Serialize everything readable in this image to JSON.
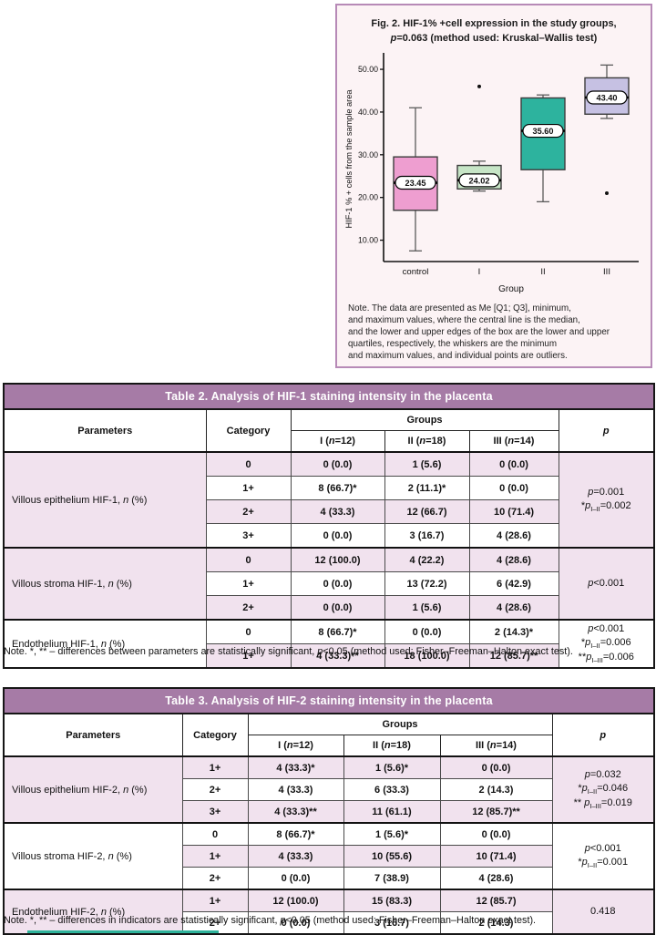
{
  "figure": {
    "title_lines": [
      [
        {
          "t": "Fig. 2. HIF-1% +cell expression in the study groups,"
        }
      ],
      [
        {
          "t": "p",
          "i": true
        },
        {
          "t": "=0.063 (method used: Kruskal–Wallis test)"
        }
      ]
    ],
    "note_lines": [
      "Note. The data are presented as Me [Q1; Q3], minimum,",
      "and maximum values, where the central line is the median,",
      "and the lower and upper edges of the box are the lower and upper",
      "quartiles, respectively, the whiskers are the minimum",
      "and maximum values, and individual points are outliers."
    ]
  },
  "chart_data": {
    "type": "boxplot",
    "title": "Fig. 2. HIF-1% +cell expression in the study groups, p=0.063 (method used: Kruskal–Wallis test)",
    "xlabel": "Group",
    "ylabel": "HIF-1 % + cells from the sample area",
    "categories": [
      "control",
      "I",
      "II",
      "III"
    ],
    "yticks": [
      50,
      40,
      30,
      20,
      10
    ],
    "ytick_labels": [
      "50.00",
      "40.00",
      "30.00",
      "20.00",
      "10.00"
    ],
    "ylim": [
      5,
      53
    ],
    "grid": false,
    "series": [
      {
        "group": "control",
        "min": 7.5,
        "q1": 17.0,
        "median": 23.45,
        "q3": 29.5,
        "max": 41.0,
        "outliers": [],
        "label": "23.45",
        "color": "#ee9ed0"
      },
      {
        "group": "I",
        "min": 21.5,
        "q1": 22.0,
        "median": 24.02,
        "q3": 27.5,
        "max": 28.5,
        "outliers": [
          46.0
        ],
        "label": "24.02",
        "color": "#c6e5c6"
      },
      {
        "group": "II",
        "min": 19.0,
        "q1": 26.5,
        "median": 35.6,
        "q3": 43.3,
        "max": 44.0,
        "outliers": [],
        "label": "35.60",
        "color": "#2db39e"
      },
      {
        "group": "III",
        "min": 38.5,
        "q1": 39.5,
        "median": 43.4,
        "q3": 48.0,
        "max": 51.0,
        "outliers": [
          21.0
        ],
        "label": "43.40",
        "color": "#c6c1e3"
      }
    ]
  },
  "tables": [
    {
      "title": "Table 2. Analysis of HIF-1 staining intensity in the placenta",
      "parameters_header": "Parameters",
      "category_header": "Category",
      "groups_header": "Groups",
      "p_header": [
        {
          "t": "p",
          "i": true
        }
      ],
      "group_headers": [
        [
          {
            "t": "I ("
          },
          {
            "t": "n",
            "i": true
          },
          {
            "t": "=12)"
          }
        ],
        [
          {
            "t": "II ("
          },
          {
            "t": "n",
            "i": true
          },
          {
            "t": "=18)"
          }
        ],
        [
          {
            "t": "III ("
          },
          {
            "t": "n",
            "i": true
          },
          {
            "t": "=14)"
          }
        ]
      ],
      "groups": [
        {
          "parameter": [
            {
              "t": "Villous epithelium HIF-1, "
            },
            {
              "t": "n",
              "i": true
            },
            {
              "t": " (%)"
            }
          ],
          "rows": [
            {
              "category": "0",
              "values": [
                "0 (0.0)",
                "1 (5.6)",
                "0 (0.0)"
              ]
            },
            {
              "category": "1+",
              "values": [
                "8 (66.7)*",
                "2 (11.1)*",
                "0 (0.0)"
              ]
            },
            {
              "category": "2+",
              "values": [
                "4 (33.3)",
                "12 (66.7)",
                "10 (71.4)"
              ]
            },
            {
              "category": "3+",
              "values": [
                "0 (0.0)",
                "3 (16.7)",
                "4 (28.6)"
              ]
            }
          ],
          "p_lines": [
            [
              {
                "t": "p",
                "i": true
              },
              {
                "t": "=0.001"
              }
            ],
            [
              {
                "t": "*"
              },
              {
                "t": "p",
                "i": true
              },
              {
                "t": "I–II",
                "s": true
              },
              {
                "t": "=0.002"
              }
            ]
          ]
        },
        {
          "parameter": [
            {
              "t": "Villous stroma HIF-1, "
            },
            {
              "t": "n",
              "i": true
            },
            {
              "t": " (%)"
            }
          ],
          "rows": [
            {
              "category": "0",
              "values": [
                "12 (100.0)",
                "4 (22.2)",
                "4 (28.6)"
              ]
            },
            {
              "category": "1+",
              "values": [
                "0 (0.0)",
                "13 (72.2)",
                "6 (42.9)"
              ]
            },
            {
              "category": "2+",
              "values": [
                "0 (0.0)",
                "1 (5.6)",
                "4 (28.6)"
              ]
            }
          ],
          "p_lines": [
            [
              {
                "t": "p",
                "i": true
              },
              {
                "t": "<0.001"
              }
            ]
          ]
        },
        {
          "parameter": [
            {
              "t": "Endothelium HIF-1, "
            },
            {
              "t": "n",
              "i": true
            },
            {
              "t": " (%)"
            }
          ],
          "rows": [
            {
              "category": "0",
              "values": [
                "8 (66.7)*",
                "0 (0.0)",
                "2 (14.3)*"
              ]
            },
            {
              "category": "1+",
              "values": [
                "4 (33.3)**",
                "18 (100.0)",
                "12 (85.7)**"
              ]
            }
          ],
          "p_lines": [
            [
              {
                "t": "p",
                "i": true
              },
              {
                "t": "<0.001"
              }
            ],
            [
              {
                "t": "*"
              },
              {
                "t": "p",
                "i": true
              },
              {
                "t": "I–II",
                "s": true
              },
              {
                "t": "=0.006"
              }
            ],
            [
              {
                "t": "**"
              },
              {
                "t": "p",
                "i": true
              },
              {
                "t": "I–III",
                "s": true
              },
              {
                "t": "=0.006"
              }
            ]
          ]
        }
      ],
      "note": [
        {
          "t": "Note. *, ** – differences between parameters are statistically significant, "
        },
        {
          "t": "p",
          "i": true
        },
        {
          "t": "<0.05 (method used: Fisher–Freeman–Halton exact test)."
        }
      ]
    },
    {
      "title": "Table 3. Analysis of HIF-2 staining intensity in the placenta",
      "parameters_header": "Parameters",
      "category_header": "Category",
      "groups_header": "Groups",
      "p_header": [
        {
          "t": "p",
          "i": true
        }
      ],
      "group_headers": [
        [
          {
            "t": "I ("
          },
          {
            "t": "n",
            "i": true
          },
          {
            "t": "=12)"
          }
        ],
        [
          {
            "t": "II ("
          },
          {
            "t": "n",
            "i": true
          },
          {
            "t": "=18)"
          }
        ],
        [
          {
            "t": "III ("
          },
          {
            "t": "n",
            "i": true
          },
          {
            "t": "=14)"
          }
        ]
      ],
      "groups": [
        {
          "parameter": [
            {
              "t": "Villous epithelium HIF-2, "
            },
            {
              "t": "n",
              "i": true
            },
            {
              "t": " (%)"
            }
          ],
          "rows": [
            {
              "category": "1+",
              "values": [
                "4 (33.3)*",
                "1 (5.6)*",
                "0 (0.0)"
              ]
            },
            {
              "category": "2+",
              "values": [
                "4 (33.3)",
                "6 (33.3)",
                "2 (14.3)"
              ]
            },
            {
              "category": "3+",
              "values": [
                "4 (33.3)**",
                "11 (61.1)",
                "12 (85.7)**"
              ]
            }
          ],
          "p_lines": [
            [
              {
                "t": "p",
                "i": true
              },
              {
                "t": "=0.032"
              }
            ],
            [
              {
                "t": "*"
              },
              {
                "t": "p",
                "i": true
              },
              {
                "t": "I–II",
                "s": true
              },
              {
                "t": "=0.046"
              }
            ],
            [
              {
                "t": "** "
              },
              {
                "t": "p",
                "i": true
              },
              {
                "t": "I–III",
                "s": true
              },
              {
                "t": "=0.019"
              }
            ]
          ]
        },
        {
          "parameter": [
            {
              "t": "Villous stroma HIF-2, "
            },
            {
              "t": "n",
              "i": true
            },
            {
              "t": " (%)"
            }
          ],
          "rows": [
            {
              "category": "0",
              "values": [
                "8 (66.7)*",
                "1 (5.6)*",
                "0 (0.0)"
              ]
            },
            {
              "category": "1+",
              "values": [
                "4 (33.3)",
                "10 (55.6)",
                "10 (71.4)"
              ]
            },
            {
              "category": "2+",
              "values": [
                "0 (0.0)",
                "7 (38.9)",
                "4 (28.6)"
              ]
            }
          ],
          "p_lines": [
            [
              {
                "t": "p",
                "i": true
              },
              {
                "t": "<0.001"
              }
            ],
            [
              {
                "t": "*"
              },
              {
                "t": "p",
                "i": true
              },
              {
                "t": "I–II",
                "s": true
              },
              {
                "t": "=0.001"
              }
            ]
          ]
        },
        {
          "parameter": [
            {
              "t": "Endothelium HIF-2, "
            },
            {
              "t": "n",
              "i": true
            },
            {
              "t": " (%)"
            }
          ],
          "rows": [
            {
              "category": "1+",
              "values": [
                "12 (100.0)",
                "15 (83.3)",
                "12 (85.7)"
              ]
            },
            {
              "category": "2+",
              "values": [
                "0 (0.0)",
                "3 (16.7)",
                "2 (14.3)"
              ]
            }
          ],
          "p_lines": [
            [
              {
                "t": "0.418"
              }
            ]
          ]
        }
      ],
      "note": [
        {
          "t": "Note. *, ** – differences in indicators are statistically significant, "
        },
        {
          "t": "p",
          "i": true
        },
        {
          "t": "<0.05 (method used: Fisher–Freeman–Halton exact test)."
        }
      ]
    }
  ],
  "colors": {
    "table_header_bg": "#a67ba6",
    "row_pink": "#f1e2ee",
    "figure_border": "#b78ab7",
    "figure_bg": "#fcf3f5",
    "box_control": "#ee9ed0",
    "box_group_i": "#c6e5c6",
    "box_group_ii": "#2db39e",
    "box_group_iii": "#c6c1e3",
    "bottom_rule": "#2eb39b"
  }
}
